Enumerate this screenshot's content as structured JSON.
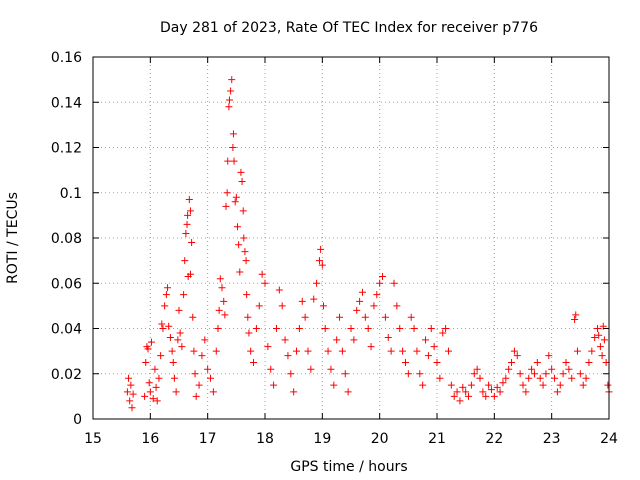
{
  "chart_data": {
    "type": "scatter",
    "title": "Day 281 of 2023, Rate Of TEC Index for receiver p776",
    "xlabel": "GPS time / hours",
    "ylabel": "ROTI / TECUs",
    "xlim": [
      15,
      24
    ],
    "ylim": [
      0,
      0.16
    ],
    "xticks": [
      "15",
      "16",
      "17",
      "18",
      "19",
      "20",
      "21",
      "22",
      "23",
      "24"
    ],
    "yticks": [
      "0",
      "0.02",
      "0.04",
      "0.06",
      "0.08",
      "0.1",
      "0.12",
      "0.14",
      "0.16"
    ],
    "grid": true,
    "marker": "+",
    "color": "#ff0000",
    "series": [
      {
        "name": "ROTI",
        "points": [
          [
            15.6,
            0.012
          ],
          [
            15.62,
            0.018
          ],
          [
            15.64,
            0.008
          ],
          [
            15.66,
            0.015
          ],
          [
            15.68,
            0.005
          ],
          [
            15.7,
            0.011
          ],
          [
            15.9,
            0.01
          ],
          [
            15.92,
            0.025
          ],
          [
            15.94,
            0.032
          ],
          [
            15.96,
            0.031
          ],
          [
            15.98,
            0.016
          ],
          [
            16.0,
            0.012
          ],
          [
            16.02,
            0.034
          ],
          [
            16.05,
            0.009
          ],
          [
            16.08,
            0.022
          ],
          [
            16.1,
            0.014
          ],
          [
            16.12,
            0.008
          ],
          [
            16.15,
            0.018
          ],
          [
            16.18,
            0.028
          ],
          [
            16.2,
            0.042
          ],
          [
            16.22,
            0.04
          ],
          [
            16.25,
            0.05
          ],
          [
            16.28,
            0.055
          ],
          [
            16.3,
            0.058
          ],
          [
            16.32,
            0.041
          ],
          [
            16.35,
            0.036
          ],
          [
            16.38,
            0.03
          ],
          [
            16.4,
            0.025
          ],
          [
            16.42,
            0.018
          ],
          [
            16.45,
            0.012
          ],
          [
            16.48,
            0.035
          ],
          [
            16.5,
            0.048
          ],
          [
            16.52,
            0.038
          ],
          [
            16.55,
            0.032
          ],
          [
            16.58,
            0.055
          ],
          [
            16.6,
            0.07
          ],
          [
            16.62,
            0.082
          ],
          [
            16.64,
            0.086
          ],
          [
            16.65,
            0.09
          ],
          [
            16.68,
            0.097
          ],
          [
            16.7,
            0.092
          ],
          [
            16.72,
            0.078
          ],
          [
            16.66,
            0.063
          ],
          [
            16.7,
            0.064
          ],
          [
            16.74,
            0.045
          ],
          [
            16.76,
            0.03
          ],
          [
            16.78,
            0.02
          ],
          [
            16.8,
            0.01
          ],
          [
            16.85,
            0.015
          ],
          [
            16.9,
            0.028
          ],
          [
            16.95,
            0.035
          ],
          [
            17.0,
            0.022
          ],
          [
            17.05,
            0.018
          ],
          [
            17.1,
            0.012
          ],
          [
            17.15,
            0.03
          ],
          [
            17.18,
            0.04
          ],
          [
            17.2,
            0.048
          ],
          [
            17.22,
            0.062
          ],
          [
            17.25,
            0.058
          ],
          [
            17.28,
            0.052
          ],
          [
            17.3,
            0.046
          ],
          [
            17.32,
            0.094
          ],
          [
            17.34,
            0.1
          ],
          [
            17.35,
            0.114
          ],
          [
            17.37,
            0.138
          ],
          [
            17.38,
            0.141
          ],
          [
            17.4,
            0.145
          ],
          [
            17.42,
            0.15
          ],
          [
            17.44,
            0.12
          ],
          [
            17.45,
            0.126
          ],
          [
            17.46,
            0.114
          ],
          [
            17.48,
            0.096
          ],
          [
            17.5,
            0.098
          ],
          [
            17.52,
            0.085
          ],
          [
            17.54,
            0.077
          ],
          [
            17.56,
            0.065
          ],
          [
            17.58,
            0.109
          ],
          [
            17.6,
            0.105
          ],
          [
            17.62,
            0.092
          ],
          [
            17.63,
            0.08
          ],
          [
            17.65,
            0.074
          ],
          [
            17.67,
            0.07
          ],
          [
            17.68,
            0.055
          ],
          [
            17.7,
            0.045
          ],
          [
            17.72,
            0.038
          ],
          [
            17.75,
            0.03
          ],
          [
            17.8,
            0.025
          ],
          [
            17.85,
            0.04
          ],
          [
            17.9,
            0.05
          ],
          [
            17.95,
            0.064
          ],
          [
            18.0,
            0.06
          ],
          [
            18.05,
            0.032
          ],
          [
            18.1,
            0.022
          ],
          [
            18.15,
            0.015
          ],
          [
            18.2,
            0.04
          ],
          [
            18.25,
            0.057
          ],
          [
            18.3,
            0.05
          ],
          [
            18.35,
            0.035
          ],
          [
            18.4,
            0.028
          ],
          [
            18.45,
            0.02
          ],
          [
            18.5,
            0.012
          ],
          [
            18.55,
            0.03
          ],
          [
            18.6,
            0.04
          ],
          [
            18.65,
            0.052
          ],
          [
            18.7,
            0.045
          ],
          [
            18.75,
            0.03
          ],
          [
            18.8,
            0.022
          ],
          [
            18.85,
            0.053
          ],
          [
            18.9,
            0.06
          ],
          [
            18.95,
            0.07
          ],
          [
            18.97,
            0.075
          ],
          [
            19.0,
            0.068
          ],
          [
            19.02,
            0.05
          ],
          [
            19.05,
            0.04
          ],
          [
            19.1,
            0.03
          ],
          [
            19.15,
            0.022
          ],
          [
            19.2,
            0.015
          ],
          [
            19.25,
            0.035
          ],
          [
            19.3,
            0.045
          ],
          [
            19.35,
            0.03
          ],
          [
            19.4,
            0.02
          ],
          [
            19.45,
            0.012
          ],
          [
            19.5,
            0.04
          ],
          [
            19.55,
            0.035
          ],
          [
            19.6,
            0.048
          ],
          [
            19.65,
            0.052
          ],
          [
            19.7,
            0.056
          ],
          [
            19.75,
            0.045
          ],
          [
            19.8,
            0.04
          ],
          [
            19.85,
            0.032
          ],
          [
            19.9,
            0.05
          ],
          [
            19.95,
            0.055
          ],
          [
            20.0,
            0.06
          ],
          [
            20.05,
            0.063
          ],
          [
            20.1,
            0.045
          ],
          [
            20.15,
            0.036
          ],
          [
            20.2,
            0.03
          ],
          [
            20.25,
            0.06
          ],
          [
            20.3,
            0.05
          ],
          [
            20.35,
            0.04
          ],
          [
            20.4,
            0.03
          ],
          [
            20.45,
            0.025
          ],
          [
            20.5,
            0.02
          ],
          [
            20.55,
            0.045
          ],
          [
            20.6,
            0.04
          ],
          [
            20.65,
            0.03
          ],
          [
            20.7,
            0.02
          ],
          [
            20.75,
            0.015
          ],
          [
            20.8,
            0.035
          ],
          [
            20.85,
            0.028
          ],
          [
            20.9,
            0.04
          ],
          [
            20.95,
            0.032
          ],
          [
            21.0,
            0.025
          ],
          [
            21.05,
            0.018
          ],
          [
            21.1,
            0.038
          ],
          [
            21.15,
            0.04
          ],
          [
            21.2,
            0.03
          ],
          [
            21.25,
            0.015
          ],
          [
            21.3,
            0.01
          ],
          [
            21.35,
            0.012
          ],
          [
            21.4,
            0.008
          ],
          [
            21.45,
            0.014
          ],
          [
            21.5,
            0.012
          ],
          [
            21.55,
            0.01
          ],
          [
            21.6,
            0.015
          ],
          [
            21.65,
            0.02
          ],
          [
            21.7,
            0.022
          ],
          [
            21.75,
            0.018
          ],
          [
            21.8,
            0.012
          ],
          [
            21.85,
            0.01
          ],
          [
            21.9,
            0.015
          ],
          [
            21.95,
            0.013
          ],
          [
            22.0,
            0.01
          ],
          [
            22.05,
            0.014
          ],
          [
            22.1,
            0.012
          ],
          [
            22.15,
            0.016
          ],
          [
            22.2,
            0.018
          ],
          [
            22.25,
            0.022
          ],
          [
            22.3,
            0.025
          ],
          [
            22.35,
            0.03
          ],
          [
            22.4,
            0.028
          ],
          [
            22.45,
            0.02
          ],
          [
            22.5,
            0.015
          ],
          [
            22.55,
            0.012
          ],
          [
            22.6,
            0.018
          ],
          [
            22.65,
            0.022
          ],
          [
            22.7,
            0.02
          ],
          [
            22.75,
            0.025
          ],
          [
            22.8,
            0.018
          ],
          [
            22.85,
            0.015
          ],
          [
            22.9,
            0.02
          ],
          [
            22.95,
            0.028
          ],
          [
            23.0,
            0.022
          ],
          [
            23.05,
            0.018
          ],
          [
            23.1,
            0.012
          ],
          [
            23.15,
            0.015
          ],
          [
            23.2,
            0.02
          ],
          [
            23.25,
            0.025
          ],
          [
            23.3,
            0.022
          ],
          [
            23.35,
            0.018
          ],
          [
            23.4,
            0.044
          ],
          [
            23.42,
            0.046
          ],
          [
            23.45,
            0.03
          ],
          [
            23.5,
            0.02
          ],
          [
            23.55,
            0.015
          ],
          [
            23.6,
            0.018
          ],
          [
            23.65,
            0.025
          ],
          [
            23.7,
            0.03
          ],
          [
            23.75,
            0.036
          ],
          [
            23.8,
            0.04
          ],
          [
            23.82,
            0.037
          ],
          [
            23.85,
            0.032
          ],
          [
            23.88,
            0.028
          ],
          [
            23.9,
            0.041
          ],
          [
            23.92,
            0.035
          ],
          [
            23.95,
            0.025
          ],
          [
            23.98,
            0.015
          ],
          [
            24.0,
            0.012
          ]
        ]
      }
    ]
  }
}
